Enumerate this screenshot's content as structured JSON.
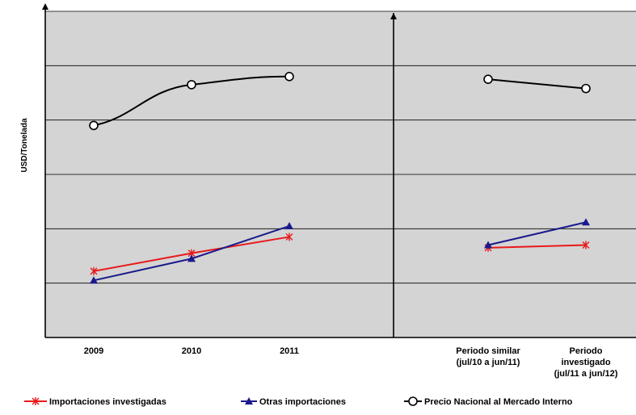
{
  "chart_data": {
    "type": "line",
    "title": "",
    "xlabel": "",
    "ylabel": "USD/Tonelada",
    "categories": [
      "2009",
      "2010",
      "2011",
      "",
      "Periodo similar (jul/10 a jun/11)",
      "Periodo investigado (jul/11 a jun/12)"
    ],
    "category_lines": [
      [
        "2009"
      ],
      [
        "2010"
      ],
      [
        "2011"
      ],
      [],
      [
        "Periodo similar",
        "(jul/10 a jun/11)"
      ],
      [
        "Periodo",
        "investigado",
        "(jul/11 a jun/12)"
      ]
    ],
    "ylim": [
      0,
      6
    ],
    "y_tick_values": [
      1,
      2,
      3,
      4,
      5,
      6
    ],
    "y_tick_labels_shown": false,
    "grid": true,
    "plot_background": "#d4d4d4",
    "separator_after_category": 3,
    "segments": [
      [
        0,
        1,
        2
      ],
      [
        4,
        5
      ]
    ],
    "series": [
      {
        "name": "Importaciones investigadas",
        "color": "#e8191b",
        "marker": "asterisk",
        "values": [
          1.22,
          1.55,
          1.85,
          null,
          1.65,
          1.7
        ]
      },
      {
        "name": "Otras importaciones",
        "color": "#1a1a8c",
        "marker": "triangle",
        "values": [
          1.05,
          1.45,
          2.05,
          null,
          1.7,
          2.12
        ]
      },
      {
        "name": "Precio Nacional al Mercado Interno",
        "color": "#000000",
        "marker": "circle",
        "values": [
          3.9,
          4.65,
          4.8,
          null,
          4.75,
          4.58
        ]
      }
    ],
    "legend_position": "bottom"
  }
}
